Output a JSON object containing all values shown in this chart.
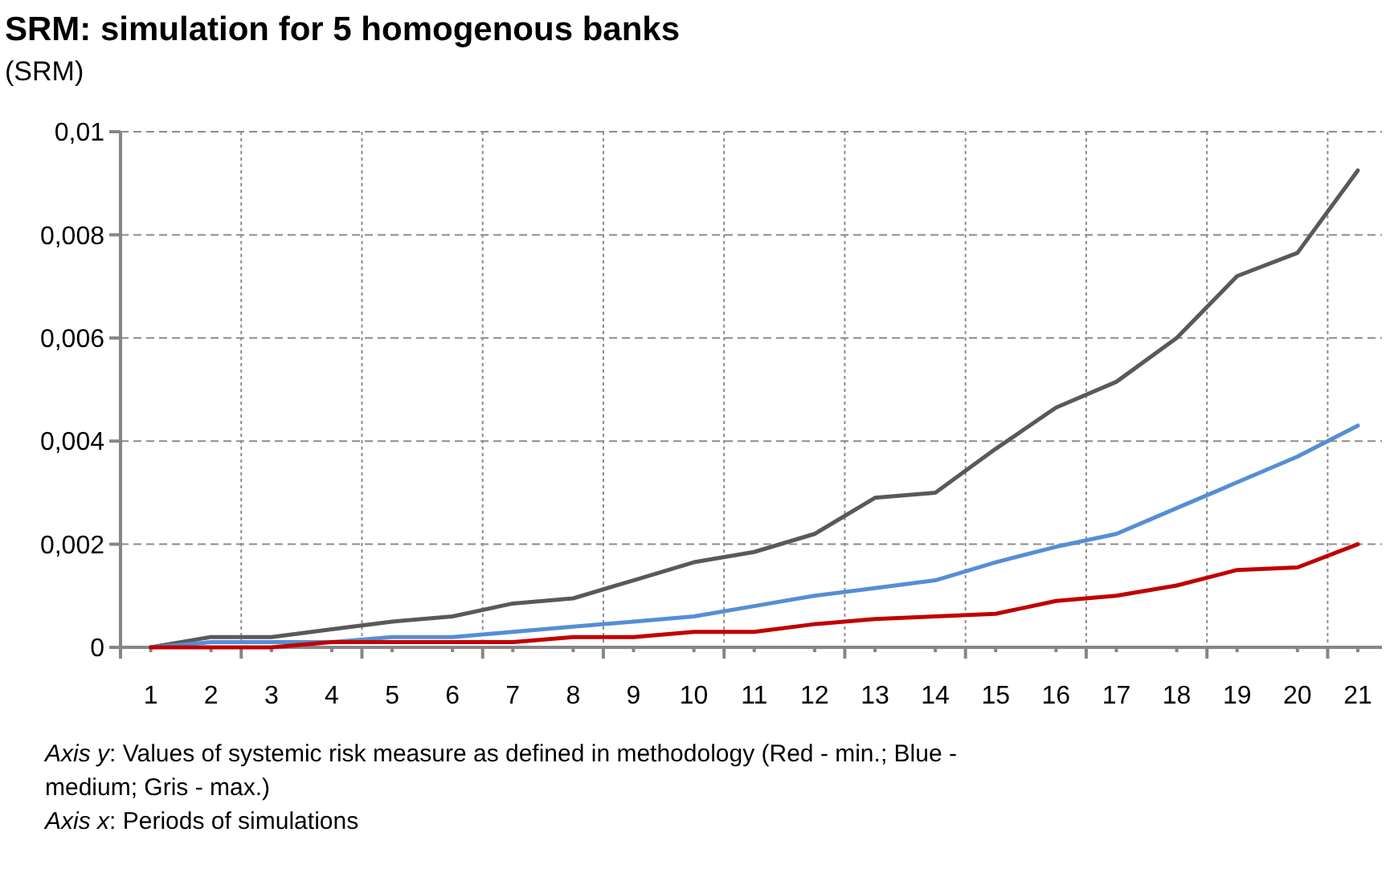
{
  "chart_data": {
    "type": "line",
    "title": "SRM: simulation for 5 homogenous banks",
    "ylabel": "(SRM)",
    "x": [
      1,
      2,
      3,
      4,
      5,
      6,
      7,
      8,
      9,
      10,
      11,
      12,
      13,
      14,
      15,
      16,
      17,
      18,
      19,
      20,
      21
    ],
    "xlim": [
      0.5,
      21.4
    ],
    "xticks": [
      {
        "value": 0.5,
        "label": null
      },
      1,
      2,
      {
        "value": 2.5,
        "label": null
      },
      3,
      4,
      {
        "value": 4.5,
        "label": null
      },
      5,
      6,
      {
        "value": 6.5,
        "label": null
      },
      7,
      8,
      {
        "value": 8.5,
        "label": null
      },
      9,
      10,
      {
        "value": 10.5,
        "label": null
      },
      11,
      12,
      {
        "value": 12.5,
        "label": null
      },
      13,
      14,
      {
        "value": 14.5,
        "label": null
      },
      15,
      16,
      {
        "value": 16.5,
        "label": null
      },
      17,
      18,
      {
        "value": 18.5,
        "label": null
      },
      19,
      20,
      {
        "value": 20.5,
        "label": null
      },
      21
    ],
    "ylim": [
      0,
      0.01
    ],
    "yticks": [
      0,
      {
        "value": 0.002,
        "label": "0,002"
      },
      {
        "value": 0.004,
        "label": "0,004"
      },
      {
        "value": 0.006,
        "label": "0,006"
      },
      {
        "value": 0.008,
        "label": "0,008"
      },
      {
        "value": 0.01,
        "label": "0,01"
      }
    ],
    "grid": true,
    "marker": "none",
    "line_style": "solid",
    "series": [
      {
        "color": "#595959",
        "values": [
          0,
          0.0002,
          0.0002,
          0.00035,
          0.0005,
          0.0006,
          0.00085,
          0.00095,
          0.0013,
          0.00165,
          0.00185,
          0.0022,
          0.0029,
          0.003,
          0.00385,
          0.00465,
          0.00515,
          0.006,
          0.0072,
          0.00765,
          0.00925
        ]
      },
      {
        "color": "#558ed5",
        "values": [
          0,
          0.0001,
          0.0001,
          0.0001,
          0.0002,
          0.0002,
          0.0003,
          0.0004,
          0.0005,
          0.0006,
          0.0008,
          0.001,
          0.00115,
          0.0013,
          0.00165,
          0.00195,
          0.0022,
          0.0027,
          0.0032,
          0.0037,
          0.0043
        ]
      },
      {
        "color": "#c00000",
        "values": [
          0,
          0,
          0,
          0.0001,
          0.0001,
          0.0001,
          0.0001,
          0.0002,
          0.0002,
          0.0003,
          0.0003,
          0.00045,
          0.00055,
          0.0006,
          0.00065,
          0.0009,
          0.001,
          0.0012,
          0.0015,
          0.00155,
          0.002
        ]
      }
    ],
    "annotations": [
      "Axis y: Values of systemic risk measure as defined in methodology  (Red  - min.; Blue - medium; Gris - max.)",
      "Axis x: Periods of simulations"
    ]
  }
}
